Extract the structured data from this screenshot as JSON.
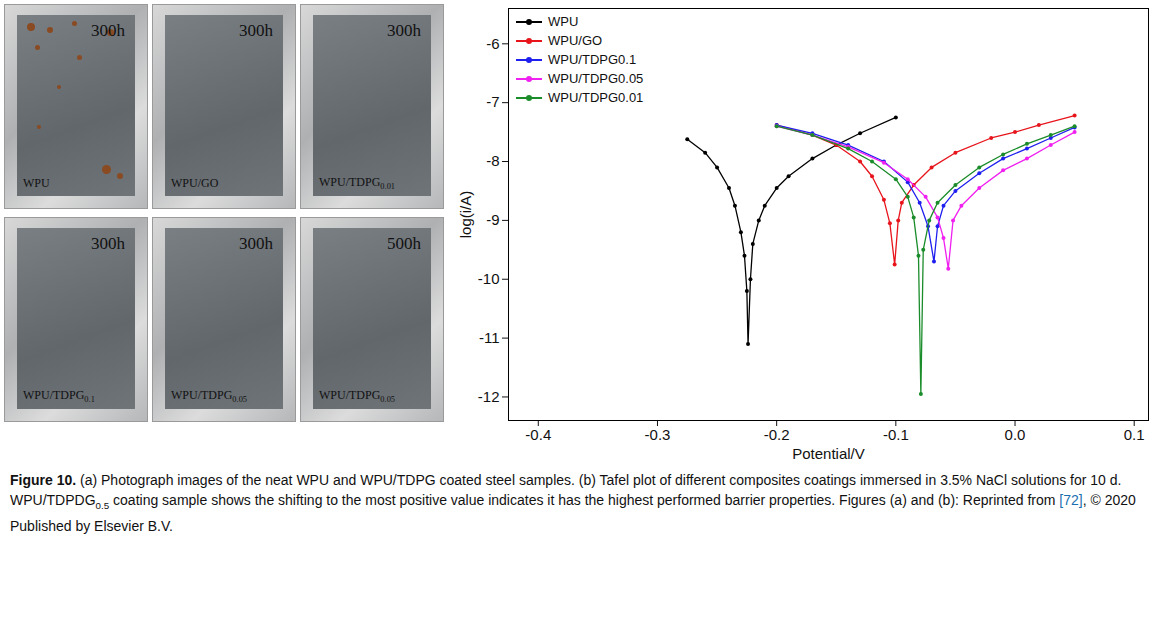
{
  "photos": {
    "panels": [
      {
        "sample": "WPU",
        "time": "300h"
      },
      {
        "sample": "WPU/GO",
        "time": "300h"
      },
      {
        "sample": "WPU/TDPG0.01",
        "time": "300h"
      },
      {
        "sample": "WPU/TDPG0.1",
        "time": "300h"
      },
      {
        "sample": "WPU/TDPG0.05",
        "time": "300h"
      },
      {
        "sample": "WPU/TDPG0.05",
        "time": "500h"
      }
    ]
  },
  "chart_data": {
    "type": "line",
    "xlabel": "Potential/V",
    "ylabel": "log(i/A)",
    "xlim": [
      -0.425,
      0.112
    ],
    "ylim": [
      -12.4,
      -5.4
    ],
    "xticks": [
      -0.4,
      -0.3,
      -0.2,
      -0.1,
      {
        "value": 0,
        "label": "0.0"
      },
      0.1
    ],
    "yticks": [
      -12,
      -11,
      -10,
      -9,
      -8,
      -7,
      -6
    ],
    "grid": false,
    "legend": "upper left",
    "marker": "circle",
    "line_style": "solid",
    "series": [
      {
        "name": "WPU",
        "color": "#000000",
        "x": [
          -0.275,
          -0.26,
          -0.25,
          -0.24,
          -0.235,
          -0.23,
          -0.227,
          -0.225,
          -0.224,
          -0.222,
          -0.22,
          -0.215,
          -0.21,
          -0.2,
          -0.19,
          -0.17,
          -0.15,
          -0.13,
          -0.1
        ],
        "values": [
          -7.62,
          -7.85,
          -8.1,
          -8.45,
          -8.75,
          -9.2,
          -9.6,
          -10.2,
          -11.1,
          -10.0,
          -9.4,
          -9.0,
          -8.75,
          -8.45,
          -8.25,
          -7.95,
          -7.72,
          -7.52,
          -7.25
        ]
      },
      {
        "name": "WPU/GO",
        "color": "#e8141c",
        "x": [
          -0.2,
          -0.17,
          -0.15,
          -0.13,
          -0.12,
          -0.11,
          -0.105,
          -0.101,
          -0.098,
          -0.095,
          -0.085,
          -0.07,
          -0.05,
          -0.02,
          0.0,
          0.02,
          0.05
        ],
        "values": [
          -7.38,
          -7.55,
          -7.72,
          -8.0,
          -8.25,
          -8.65,
          -9.05,
          -9.75,
          -9.0,
          -8.7,
          -8.4,
          -8.1,
          -7.85,
          -7.6,
          -7.5,
          -7.38,
          -7.22
        ]
      },
      {
        "name": "WPU/TDPG0.1",
        "color": "#1f1ff0",
        "x": [
          -0.2,
          -0.17,
          -0.14,
          -0.11,
          -0.09,
          -0.08,
          -0.073,
          -0.068,
          -0.065,
          -0.06,
          -0.05,
          -0.03,
          -0.01,
          0.01,
          0.03,
          0.05
        ],
        "values": [
          -7.38,
          -7.52,
          -7.72,
          -8.0,
          -8.35,
          -8.7,
          -9.1,
          -9.7,
          -9.1,
          -8.75,
          -8.5,
          -8.2,
          -7.95,
          -7.78,
          -7.6,
          -7.42
        ]
      },
      {
        "name": "WPU/TDPG0.05",
        "color": "#f020f0",
        "x": [
          -0.2,
          -0.17,
          -0.14,
          -0.11,
          -0.09,
          -0.075,
          -0.065,
          -0.06,
          -0.056,
          -0.052,
          -0.045,
          -0.03,
          -0.01,
          0.01,
          0.03,
          0.05
        ],
        "values": [
          -7.4,
          -7.55,
          -7.75,
          -8.02,
          -8.3,
          -8.6,
          -8.95,
          -9.3,
          -9.82,
          -9.0,
          -8.75,
          -8.45,
          -8.15,
          -7.95,
          -7.72,
          -7.5
        ]
      },
      {
        "name": "WPU/TDPG0.01",
        "color": "#1a8c2a",
        "x": [
          -0.2,
          -0.17,
          -0.14,
          -0.12,
          -0.1,
          -0.09,
          -0.085,
          -0.081,
          -0.079,
          -0.077,
          -0.072,
          -0.065,
          -0.05,
          -0.03,
          -0.01,
          0.01,
          0.03,
          0.05
        ],
        "values": [
          -7.4,
          -7.55,
          -7.78,
          -8.0,
          -8.3,
          -8.6,
          -8.95,
          -9.6,
          -11.95,
          -9.5,
          -9.0,
          -8.7,
          -8.4,
          -8.1,
          -7.88,
          -7.7,
          -7.55,
          -7.4
        ]
      }
    ]
  },
  "caption": {
    "label": "Figure 10.",
    "text": "(a) Photograph images of the neat WPU and WPU/TDPG coated steel samples. (b) Tafel plot of different composites coatings immersed in 3.5% NaCl solutions for 10 d. WPU/TDPDG0.5 coating sample shows the shifting to the most positive value indicates it has the highest performed barrier properties. Figures (a) and (b): Reprinted from ",
    "reference": "[72]",
    "text_after_reference": ", © 2020 Published by Elsevier B.V."
  }
}
